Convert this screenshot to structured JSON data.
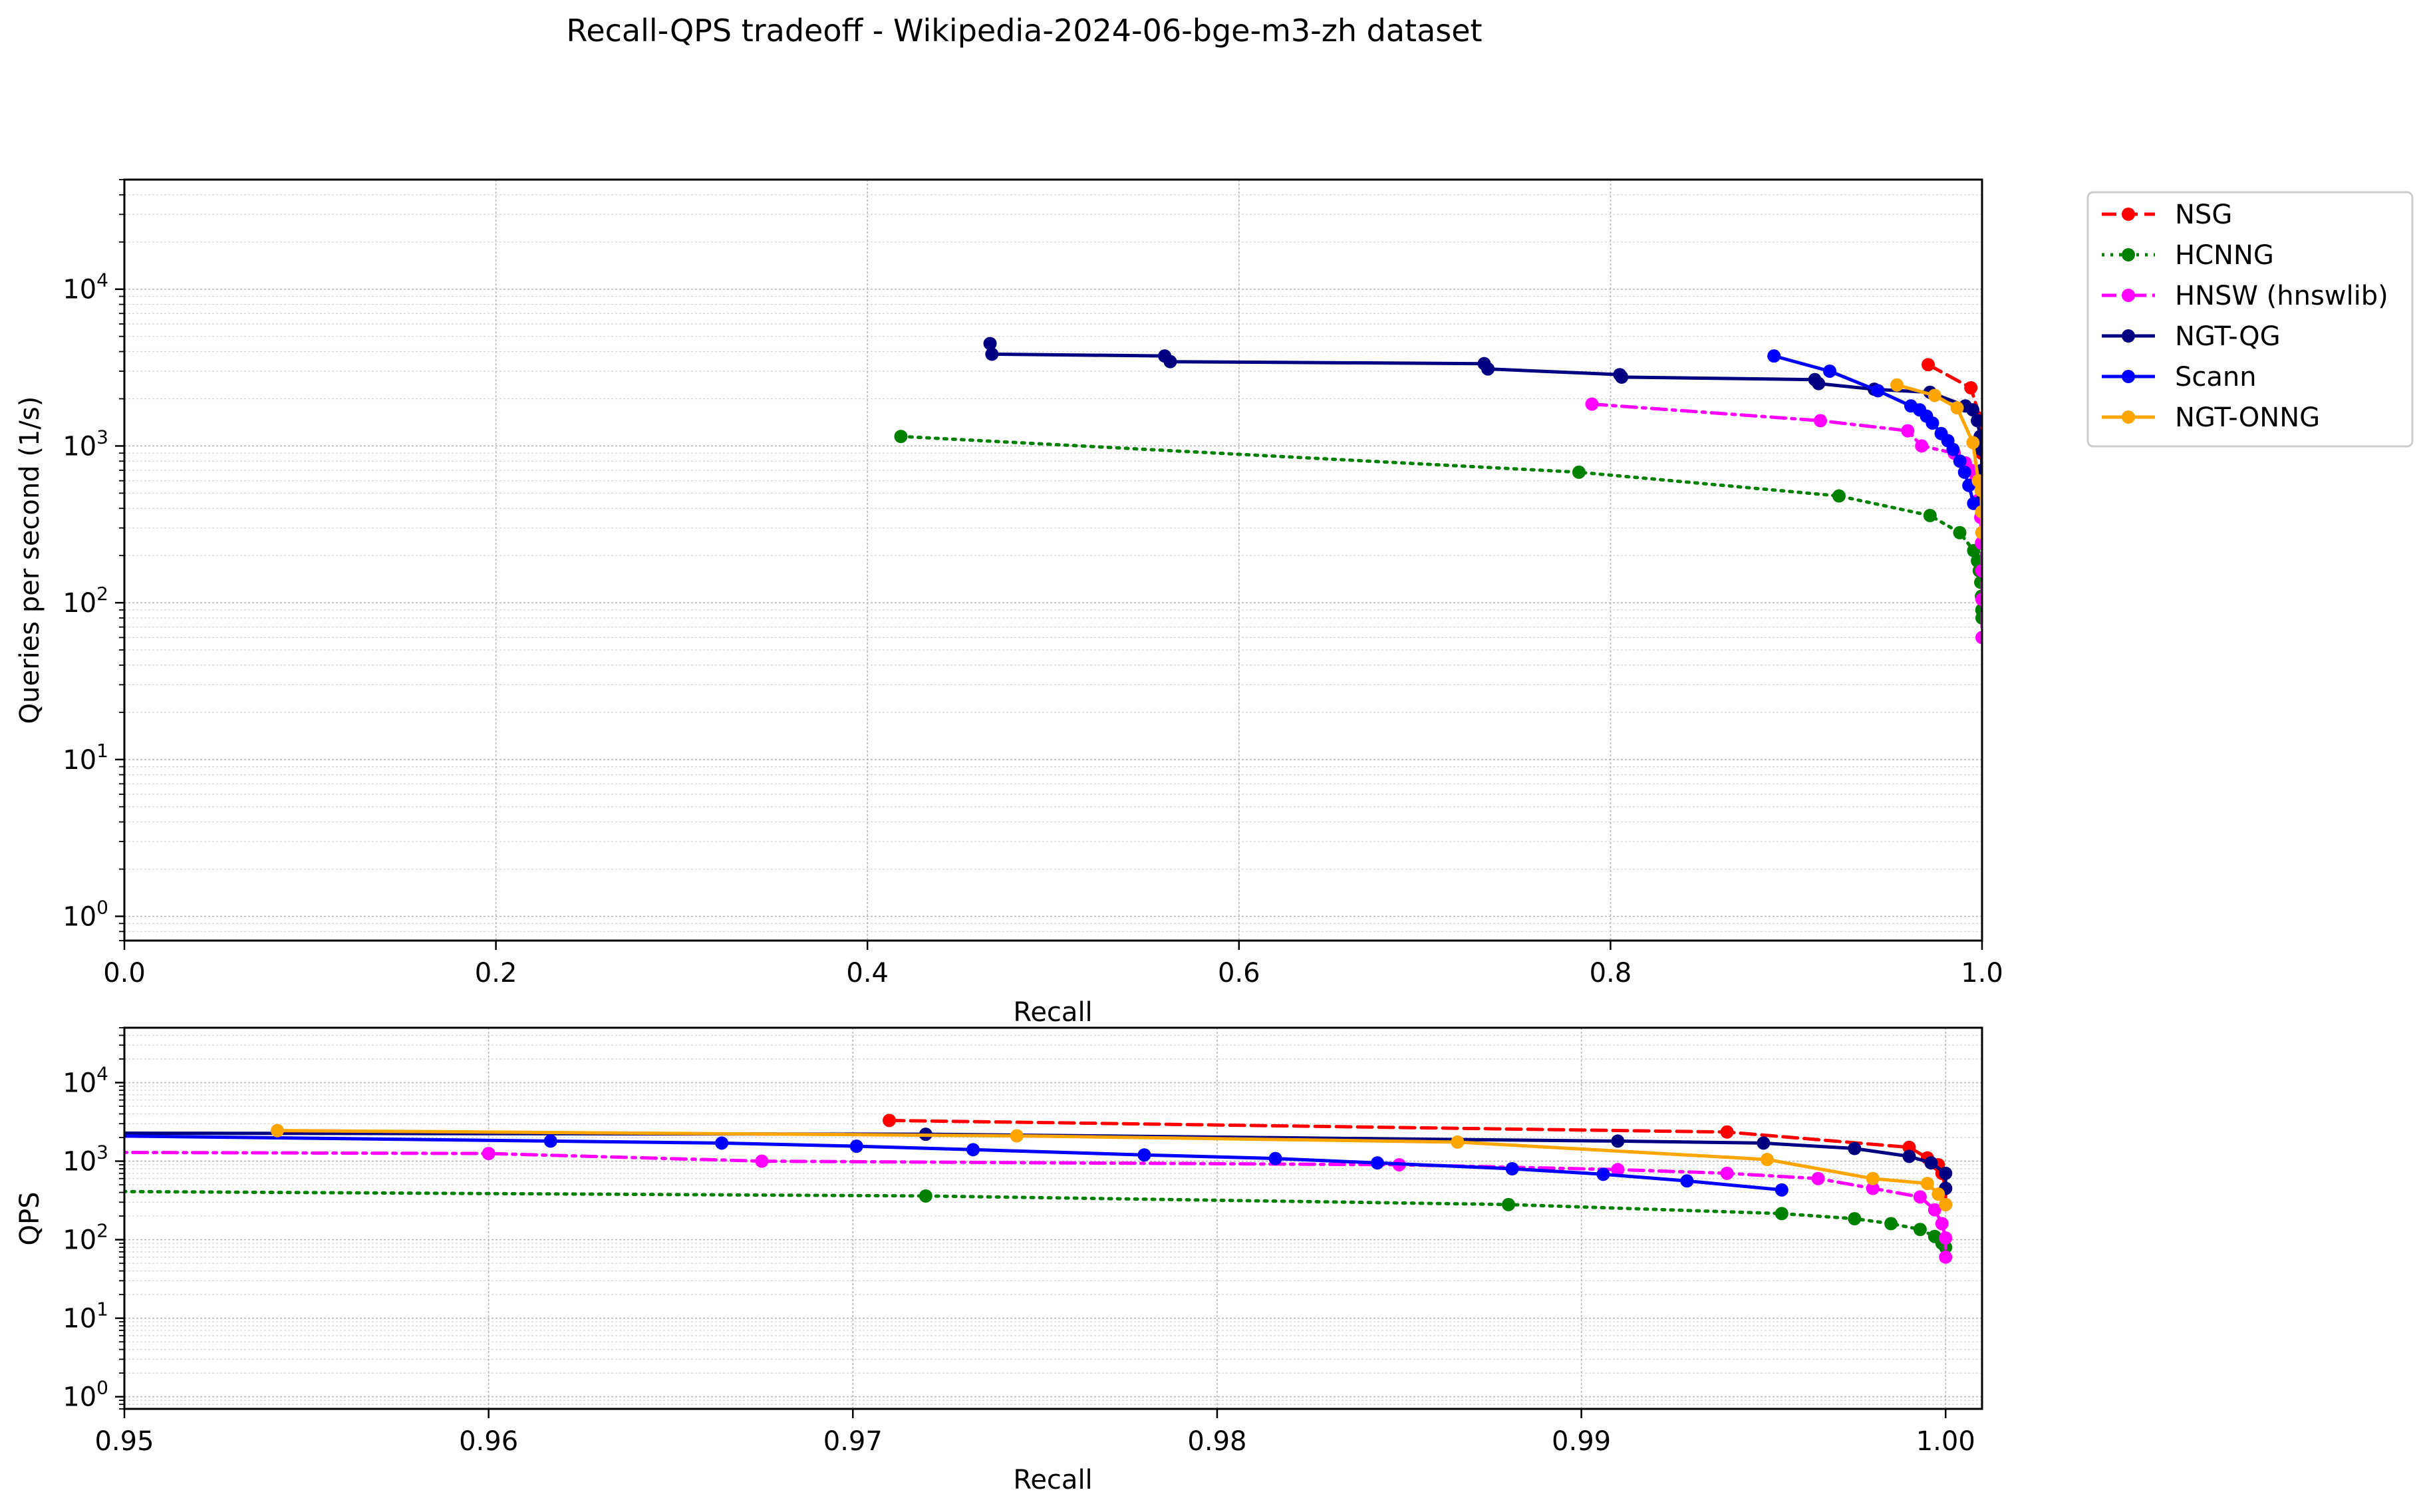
{
  "figure_title": "Recall-QPS tradeoff - Wikipedia-2024-06-bge-m3-zh dataset",
  "colors": {
    "NSG": "#ff0000",
    "HCNNG": "#008000",
    "HNSW (hnswlib)": "#ff00ff",
    "NGT-QG": "#000080",
    "Scann": "#0000ff",
    "NGT-ONNG": "#ffa500",
    "grid": "#b0b0b0"
  },
  "legend": {
    "placement": "outside-right",
    "entries": [
      {
        "label": "NSG",
        "style": "dashed",
        "color": "#ff0000"
      },
      {
        "label": "HCNNG",
        "style": "dotted",
        "color": "#008000"
      },
      {
        "label": "HNSW (hnswlib)",
        "style": "dashdot",
        "color": "#ff00ff"
      },
      {
        "label": "NGT-QG",
        "style": "solid",
        "color": "#000080"
      },
      {
        "label": "Scann",
        "style": "solid",
        "color": "#0000ff"
      },
      {
        "label": "NGT-ONNG",
        "style": "solid",
        "color": "#ffa500"
      }
    ]
  },
  "chart_data": [
    {
      "type": "line",
      "xlabel": "Recall",
      "ylabel": "Queries per second (1/s)",
      "xlim": [
        0.0,
        1.0
      ],
      "ylim": [
        0.7,
        50000
      ],
      "yscale": "log",
      "grid": "major and minor",
      "xticks": [
        "0.0",
        "0.2",
        "0.4",
        "0.6",
        "0.8",
        "1.0"
      ],
      "yticks": [
        {
          "base": "10",
          "exp": "0"
        },
        {
          "base": "10",
          "exp": "1"
        },
        {
          "base": "10",
          "exp": "2"
        },
        {
          "base": "10",
          "exp": "3"
        },
        {
          "base": "10",
          "exp": "4"
        }
      ],
      "series": [
        {
          "name": "NSG",
          "points": [
            [
              0.971,
              3300
            ],
            [
              0.994,
              2350
            ],
            [
              0.999,
              1500
            ],
            [
              0.9995,
              1100
            ],
            [
              0.9998,
              900
            ],
            [
              0.9999,
              700
            ],
            [
              1.0,
              450
            ],
            [
              1.0,
              280
            ]
          ]
        },
        {
          "name": "HCNNG",
          "points": [
            [
              0.418,
              1150
            ],
            [
              0.783,
              680
            ],
            [
              0.923,
              480
            ],
            [
              0.972,
              360
            ],
            [
              0.988,
              280
            ],
            [
              0.9955,
              215
            ],
            [
              0.9975,
              185
            ],
            [
              0.9985,
              160
            ],
            [
              0.9993,
              135
            ],
            [
              0.9997,
              110
            ],
            [
              0.9999,
              90
            ],
            [
              1.0,
              80
            ]
          ]
        },
        {
          "name": "HNSW (hnswlib)",
          "points": [
            [
              0.79,
              1850
            ],
            [
              0.913,
              1450
            ],
            [
              0.96,
              1250
            ],
            [
              0.9675,
              1000
            ],
            [
              0.985,
              900
            ],
            [
              0.991,
              780
            ],
            [
              0.994,
              700
            ],
            [
              0.9965,
              600
            ],
            [
              0.998,
              450
            ],
            [
              0.9993,
              350
            ],
            [
              0.9997,
              240
            ],
            [
              0.9999,
              160
            ],
            [
              1.0,
              105
            ],
            [
              1.0,
              60
            ]
          ]
        },
        {
          "name": "NGT-QG",
          "points": [
            [
              0.466,
              4500
            ],
            [
              0.467,
              3850
            ],
            [
              0.56,
              3750
            ],
            [
              0.563,
              3450
            ],
            [
              0.732,
              3350
            ],
            [
              0.734,
              3100
            ],
            [
              0.805,
              2850
            ],
            [
              0.806,
              2750
            ],
            [
              0.91,
              2650
            ],
            [
              0.912,
              2500
            ],
            [
              0.942,
              2300
            ],
            [
              0.972,
              2200
            ],
            [
              0.991,
              1800
            ],
            [
              0.995,
              1700
            ],
            [
              0.9975,
              1450
            ],
            [
              0.999,
              1150
            ],
            [
              0.9996,
              950
            ],
            [
              1.0,
              700
            ],
            [
              1.0,
              450
            ]
          ]
        },
        {
          "name": "Scann",
          "points": [
            [
              0.888,
              3750
            ],
            [
              0.918,
              3000
            ],
            [
              0.944,
              2250
            ],
            [
              0.9617,
              1800
            ],
            [
              0.9664,
              1700
            ],
            [
              0.9701,
              1550
            ],
            [
              0.9733,
              1400
            ],
            [
              0.978,
              1200
            ],
            [
              0.9816,
              1080
            ],
            [
              0.9844,
              950
            ],
            [
              0.9881,
              800
            ],
            [
              0.9906,
              680
            ],
            [
              0.9929,
              560
            ],
            [
              0.9955,
              430
            ]
          ]
        },
        {
          "name": "NGT-ONNG",
          "points": [
            [
              0.9542,
              2450
            ],
            [
              0.9745,
              2100
            ],
            [
              0.9866,
              1750
            ],
            [
              0.9951,
              1050
            ],
            [
              0.998,
              600
            ],
            [
              0.9995,
              520
            ],
            [
              0.9998,
              380
            ],
            [
              1.0,
              280
            ]
          ]
        }
      ]
    },
    {
      "type": "line",
      "xlabel": "Recall",
      "ylabel": "QPS",
      "xlim": [
        0.95,
        1.001
      ],
      "ylim": [
        0.7,
        50000
      ],
      "yscale": "log",
      "grid": "major and minor",
      "xticks": [
        "0.95",
        "0.96",
        "0.97",
        "0.98",
        "0.99",
        "1.00"
      ],
      "yticks": [
        {
          "base": "10",
          "exp": "0"
        },
        {
          "base": "10",
          "exp": "1"
        },
        {
          "base": "10",
          "exp": "2"
        },
        {
          "base": "10",
          "exp": "3"
        },
        {
          "base": "10",
          "exp": "4"
        }
      ],
      "series": "same as panel 1 (zoomed view)"
    }
  ]
}
